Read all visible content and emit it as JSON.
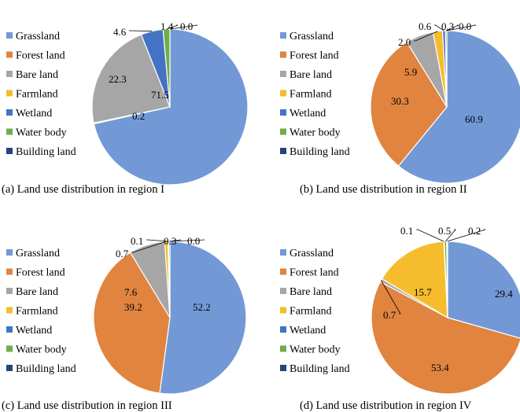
{
  "colors": {
    "Grassland": "#7299d6",
    "Forest land": "#e0843f",
    "Bare land": "#a6a6a6",
    "Farmland": "#f5bd2d",
    "Wetland": "#4472c4",
    "Water body": "#70ad47",
    "Building land": "#264478"
  },
  "chart_data": [
    {
      "type": "pie",
      "caption": "(a) Land use distribution in region I",
      "categories": [
        "Grassland",
        "Forest land",
        "Bare land",
        "Farmland",
        "Wetland",
        "Water body",
        "Building land"
      ],
      "values": [
        71.5,
        0.2,
        22.3,
        0.0,
        4.6,
        1.4,
        0.0
      ],
      "data_labels": [
        "71.5",
        "0.2",
        "22.3",
        "0.0",
        "4.6",
        "1.4",
        "0.0"
      ],
      "legend": "left"
    },
    {
      "type": "pie",
      "caption": "(b) Land use distribution in region II",
      "categories": [
        "Grassland",
        "Forest land",
        "Bare land",
        "Farmland",
        "Wetland",
        "Water body",
        "Building land"
      ],
      "values": [
        60.9,
        30.3,
        5.9,
        2.0,
        0.6,
        0.3,
        0.0
      ],
      "data_labels": [
        "60.9",
        "30.3",
        "5.9",
        "2.0",
        "0.6",
        "0.3",
        "0.0"
      ],
      "legend": "left"
    },
    {
      "type": "pie",
      "caption": "(c) Land use distribution in region III",
      "categories": [
        "Grassland",
        "Forest land",
        "Bare land",
        "Farmland",
        "Wetland",
        "Water body",
        "Building land"
      ],
      "values": [
        52.2,
        39.2,
        7.6,
        0.7,
        0.1,
        0.3,
        0.0
      ],
      "data_labels": [
        "52.2",
        "39.2",
        "7.6",
        "0.7",
        "0.1",
        "0.3",
        "0.0"
      ],
      "legend": "left"
    },
    {
      "type": "pie",
      "caption": "(d) Land use distribution in region IV",
      "categories": [
        "Grassland",
        "Forest land",
        "Bare land",
        "Farmland",
        "Wetland",
        "Water body",
        "Building land"
      ],
      "values": [
        29.4,
        53.4,
        0.7,
        15.7,
        0.1,
        0.5,
        0.2
      ],
      "data_labels": [
        "29.4",
        "53.4",
        "0.7",
        "15.7",
        "0.1",
        "0.5",
        "0.2"
      ],
      "legend": "left"
    }
  ]
}
